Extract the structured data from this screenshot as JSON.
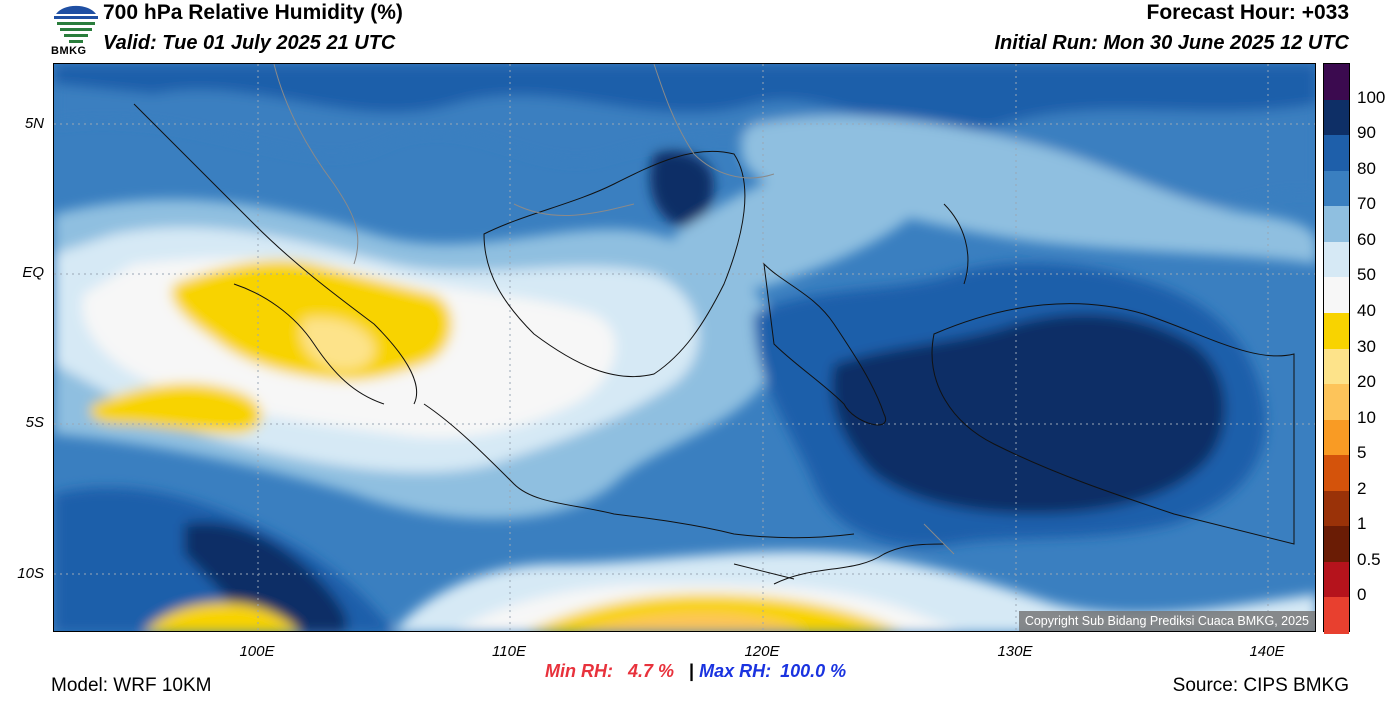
{
  "header": {
    "title": "700 hPa Relative Humidity (%)",
    "valid": "Valid: Tue 01 July 2025 21 UTC",
    "forecast_hour": "Forecast Hour: +033",
    "initial_run": "Initial Run: Mon 30 June 2025 12 UTC",
    "logo_text": "BMKG"
  },
  "map": {
    "lat_labels": [
      "5N",
      "EQ",
      "5S",
      "10S"
    ],
    "lon_labels": [
      "100E",
      "110E",
      "120E",
      "130E",
      "140E"
    ],
    "copyright": "Copyright Sub Bidang Prediksi Cuaca BMKG, 2025"
  },
  "stats": {
    "min_label": "Min RH:",
    "min_value": "4.7 %",
    "separator": "|",
    "max_label": "Max RH:",
    "max_value": "100.0 %"
  },
  "footer": {
    "model": "Model: WRF 10KM",
    "source": "Source: CIPS BMKG"
  },
  "colorbar": {
    "labels": [
      "100",
      "90",
      "80",
      "70",
      "60",
      "50",
      "40",
      "30",
      "20",
      "10",
      "5",
      "2",
      "1",
      "0.5",
      "0"
    ],
    "colors": [
      "#3b0a4f",
      "#0e2f66",
      "#1e5faa",
      "#3a7fc0",
      "#8fbfe0",
      "#d6e9f5",
      "#f7f7f7",
      "#f8d300",
      "#fde38a",
      "#fdc45a",
      "#f99b24",
      "#d4530b",
      "#9a3208",
      "#6a1c05",
      "#b5131c",
      "#e8402f"
    ]
  }
}
